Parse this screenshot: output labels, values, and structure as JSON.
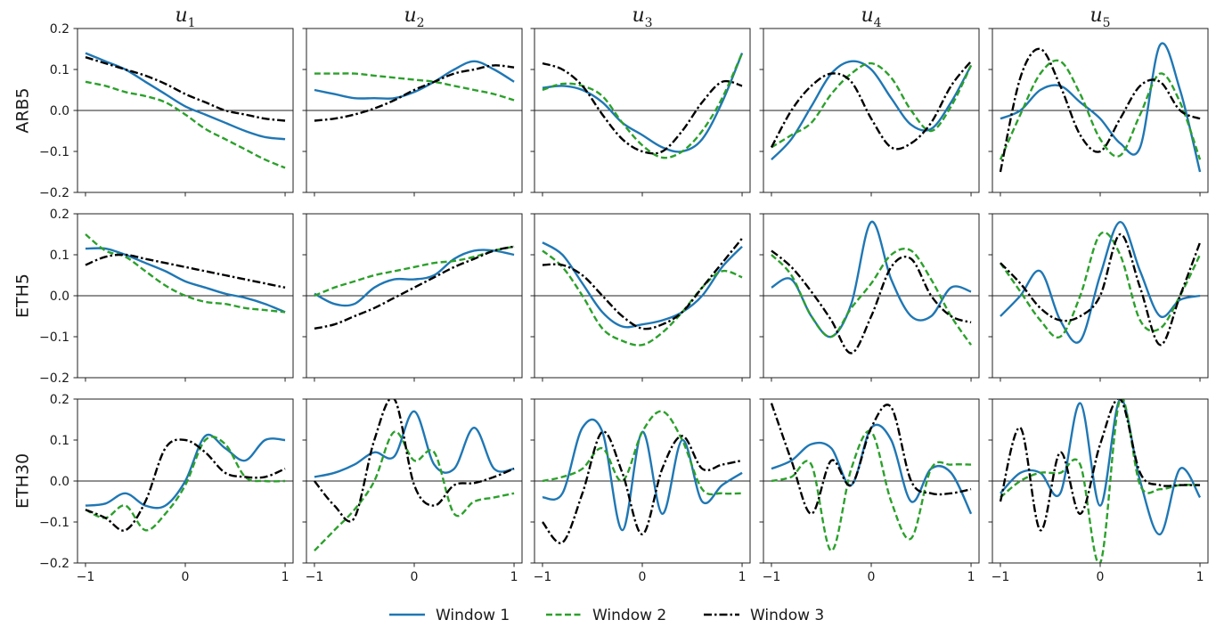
{
  "chart_data": {
    "type": "line",
    "layout": "grid of small multiples, 3 rows x 5 columns, shared axes",
    "x": [
      -1,
      -0.8,
      -0.6,
      -0.4,
      -0.2,
      0,
      0.2,
      0.4,
      0.6,
      0.8,
      1
    ],
    "xlim": [
      -1.08,
      1.08
    ],
    "ylim": [
      -0.2,
      0.2
    ],
    "x_ticks": [
      -1,
      0,
      1
    ],
    "x_tick_labels": [
      "−1",
      "0",
      "1"
    ],
    "y_ticks": [
      -0.2,
      -0.1,
      0.0,
      0.1,
      0.2
    ],
    "y_tick_labels": [
      "−0.2",
      "−0.1",
      "0.0",
      "0.1",
      "0.2"
    ],
    "zero_line": true,
    "columns": [
      {
        "symbol": "u",
        "index": "1"
      },
      {
        "symbol": "u",
        "index": "2"
      },
      {
        "symbol": "u",
        "index": "3"
      },
      {
        "symbol": "u",
        "index": "4"
      },
      {
        "symbol": "u",
        "index": "5"
      }
    ],
    "rows": [
      "ARB5",
      "ETH5",
      "ETH30"
    ],
    "series": [
      {
        "name": "Window 1",
        "color": "#1f77b4",
        "dash": "solid"
      },
      {
        "name": "Window 2",
        "color": "#2ca02c",
        "dash": "dashed"
      },
      {
        "name": "Window 3",
        "color": "#000000",
        "dash": "dashdot"
      }
    ],
    "legend_position": "bottom-center",
    "panels": [
      [
        [
          [
            0.14,
            0.12,
            0.1,
            0.07,
            0.04,
            0.01,
            -0.01,
            -0.03,
            -0.05,
            -0.065,
            -0.07
          ],
          [
            0.07,
            0.06,
            0.045,
            0.035,
            0.02,
            -0.01,
            -0.045,
            -0.07,
            -0.095,
            -0.12,
            -0.14
          ],
          [
            0.13,
            0.115,
            0.1,
            0.085,
            0.065,
            0.04,
            0.02,
            0.0,
            -0.01,
            -0.02,
            -0.025
          ]
        ],
        [
          [
            0.05,
            0.04,
            0.03,
            0.03,
            0.03,
            0.045,
            0.07,
            0.1,
            0.12,
            0.1,
            0.07
          ],
          [
            0.09,
            0.09,
            0.09,
            0.085,
            0.08,
            0.075,
            0.07,
            0.06,
            0.05,
            0.04,
            0.025
          ],
          [
            -0.025,
            -0.02,
            -0.01,
            0.005,
            0.025,
            0.05,
            0.07,
            0.09,
            0.1,
            0.11,
            0.105
          ]
        ],
        [
          [
            0.055,
            0.06,
            0.05,
            0.02,
            -0.03,
            -0.06,
            -0.09,
            -0.1,
            -0.07,
            0.02,
            0.14
          ],
          [
            0.05,
            0.065,
            0.06,
            0.035,
            -0.03,
            -0.085,
            -0.115,
            -0.1,
            -0.05,
            0.03,
            0.14
          ],
          [
            0.115,
            0.1,
            0.06,
            -0.01,
            -0.07,
            -0.1,
            -0.1,
            -0.05,
            0.02,
            0.07,
            0.06
          ]
        ],
        [
          [
            -0.12,
            -0.07,
            0.01,
            0.09,
            0.12,
            0.1,
            0.03,
            -0.035,
            -0.045,
            0.02,
            0.11
          ],
          [
            -0.09,
            -0.06,
            -0.03,
            0.04,
            0.09,
            0.115,
            0.08,
            0.0,
            -0.05,
            0.01,
            0.11
          ],
          [
            -0.09,
            0.0,
            0.06,
            0.09,
            0.07,
            -0.02,
            -0.09,
            -0.08,
            -0.03,
            0.06,
            0.12
          ]
        ],
        [
          [
            -0.02,
            0.0,
            0.05,
            0.06,
            0.02,
            -0.02,
            -0.08,
            -0.09,
            0.16,
            0.05,
            -0.15
          ],
          [
            -0.12,
            -0.01,
            0.09,
            0.12,
            0.04,
            -0.07,
            -0.11,
            -0.01,
            0.09,
            0.02,
            -0.12
          ],
          [
            -0.15,
            0.08,
            0.15,
            0.06,
            -0.06,
            -0.1,
            -0.02,
            0.06,
            0.07,
            0.0,
            -0.02
          ]
        ]
      ],
      [
        [
          [
            0.115,
            0.115,
            0.1,
            0.08,
            0.06,
            0.035,
            0.02,
            0.005,
            -0.005,
            -0.02,
            -0.04
          ],
          [
            0.15,
            0.11,
            0.095,
            0.06,
            0.025,
            0.0,
            -0.015,
            -0.02,
            -0.03,
            -0.035,
            -0.04
          ],
          [
            0.075,
            0.095,
            0.1,
            0.09,
            0.08,
            0.07,
            0.06,
            0.05,
            0.04,
            0.03,
            0.02
          ]
        ],
        [
          [
            0.005,
            -0.02,
            -0.02,
            0.02,
            0.04,
            0.04,
            0.05,
            0.09,
            0.11,
            0.11,
            0.1
          ],
          [
            0.0,
            0.02,
            0.035,
            0.05,
            0.06,
            0.07,
            0.08,
            0.085,
            0.095,
            0.11,
            0.12
          ],
          [
            -0.08,
            -0.07,
            -0.05,
            -0.03,
            -0.005,
            0.02,
            0.045,
            0.07,
            0.09,
            0.11,
            0.12
          ]
        ],
        [
          [
            0.13,
            0.1,
            0.03,
            -0.04,
            -0.075,
            -0.07,
            -0.06,
            -0.04,
            0.0,
            0.07,
            0.12
          ],
          [
            0.11,
            0.07,
            0.0,
            -0.08,
            -0.11,
            -0.12,
            -0.09,
            -0.04,
            0.02,
            0.06,
            0.045
          ],
          [
            0.075,
            0.075,
            0.05,
            0.0,
            -0.05,
            -0.08,
            -0.07,
            -0.04,
            0.02,
            0.08,
            0.14
          ]
        ],
        [
          [
            0.02,
            0.04,
            -0.05,
            -0.1,
            -0.02,
            0.18,
            0.04,
            -0.05,
            -0.05,
            0.02,
            0.01
          ],
          [
            0.1,
            0.05,
            -0.05,
            -0.1,
            -0.03,
            0.03,
            0.1,
            0.11,
            0.04,
            -0.05,
            -0.12
          ],
          [
            0.11,
            0.07,
            0.01,
            -0.06,
            -0.14,
            -0.05,
            0.07,
            0.09,
            0.0,
            -0.05,
            -0.065
          ]
        ],
        [
          [
            -0.05,
            0.0,
            0.06,
            -0.06,
            -0.11,
            0.05,
            0.18,
            0.06,
            -0.05,
            -0.01,
            0.0
          ],
          [
            0.08,
            0.01,
            -0.06,
            -0.1,
            0.0,
            0.15,
            0.1,
            -0.06,
            -0.08,
            0.0,
            0.1
          ],
          [
            0.08,
            0.03,
            -0.03,
            -0.06,
            -0.05,
            0.0,
            0.15,
            0.02,
            -0.12,
            0.0,
            0.13
          ]
        ]
      ],
      [
        [
          [
            -0.06,
            -0.055,
            -0.03,
            -0.06,
            -0.06,
            0.0,
            0.11,
            0.08,
            0.05,
            0.1,
            0.1
          ],
          [
            -0.07,
            -0.09,
            -0.06,
            -0.12,
            -0.08,
            -0.01,
            0.1,
            0.09,
            0.01,
            0.0,
            0.0
          ],
          [
            -0.07,
            -0.09,
            -0.12,
            -0.05,
            0.08,
            0.1,
            0.07,
            0.02,
            0.01,
            0.01,
            0.03
          ]
        ],
        [
          [
            0.01,
            0.02,
            0.04,
            0.07,
            0.06,
            0.17,
            0.04,
            0.03,
            0.13,
            0.03,
            0.03
          ],
          [
            -0.17,
            -0.12,
            -0.07,
            0.0,
            0.12,
            0.05,
            0.07,
            -0.08,
            -0.05,
            -0.04,
            -0.03
          ],
          [
            0.0,
            -0.06,
            -0.09,
            0.1,
            0.2,
            -0.01,
            -0.06,
            -0.01,
            -0.005,
            0.01,
            0.03
          ]
        ],
        [
          [
            -0.04,
            -0.03,
            0.13,
            0.12,
            -0.12,
            0.12,
            -0.08,
            0.1,
            -0.05,
            -0.01,
            0.02
          ],
          [
            0.0,
            0.01,
            0.03,
            0.08,
            0.0,
            0.12,
            0.17,
            0.1,
            -0.02,
            -0.03,
            -0.03
          ],
          [
            -0.1,
            -0.15,
            -0.03,
            0.12,
            0.02,
            -0.13,
            0.03,
            0.11,
            0.03,
            0.04,
            0.05
          ]
        ],
        [
          [
            0.03,
            0.05,
            0.09,
            0.08,
            -0.01,
            0.13,
            0.1,
            -0.05,
            0.03,
            0.02,
            -0.08
          ],
          [
            0.0,
            0.01,
            0.04,
            -0.17,
            0.03,
            0.12,
            -0.05,
            -0.14,
            0.03,
            0.04,
            0.04
          ],
          [
            0.19,
            0.05,
            -0.08,
            0.05,
            -0.01,
            0.13,
            0.18,
            0.0,
            -0.03,
            -0.03,
            -0.02
          ]
        ],
        [
          [
            -0.03,
            0.02,
            0.02,
            -0.03,
            0.19,
            -0.06,
            0.2,
            0.0,
            -0.13,
            0.03,
            -0.04
          ],
          [
            -0.04,
            0.0,
            0.02,
            0.02,
            0.04,
            -0.2,
            0.2,
            -0.01,
            -0.02,
            -0.01,
            -0.01
          ],
          [
            -0.05,
            0.13,
            -0.12,
            0.07,
            -0.08,
            0.09,
            0.2,
            0.02,
            -0.01,
            -0.01,
            -0.01
          ]
        ]
      ]
    ]
  }
}
